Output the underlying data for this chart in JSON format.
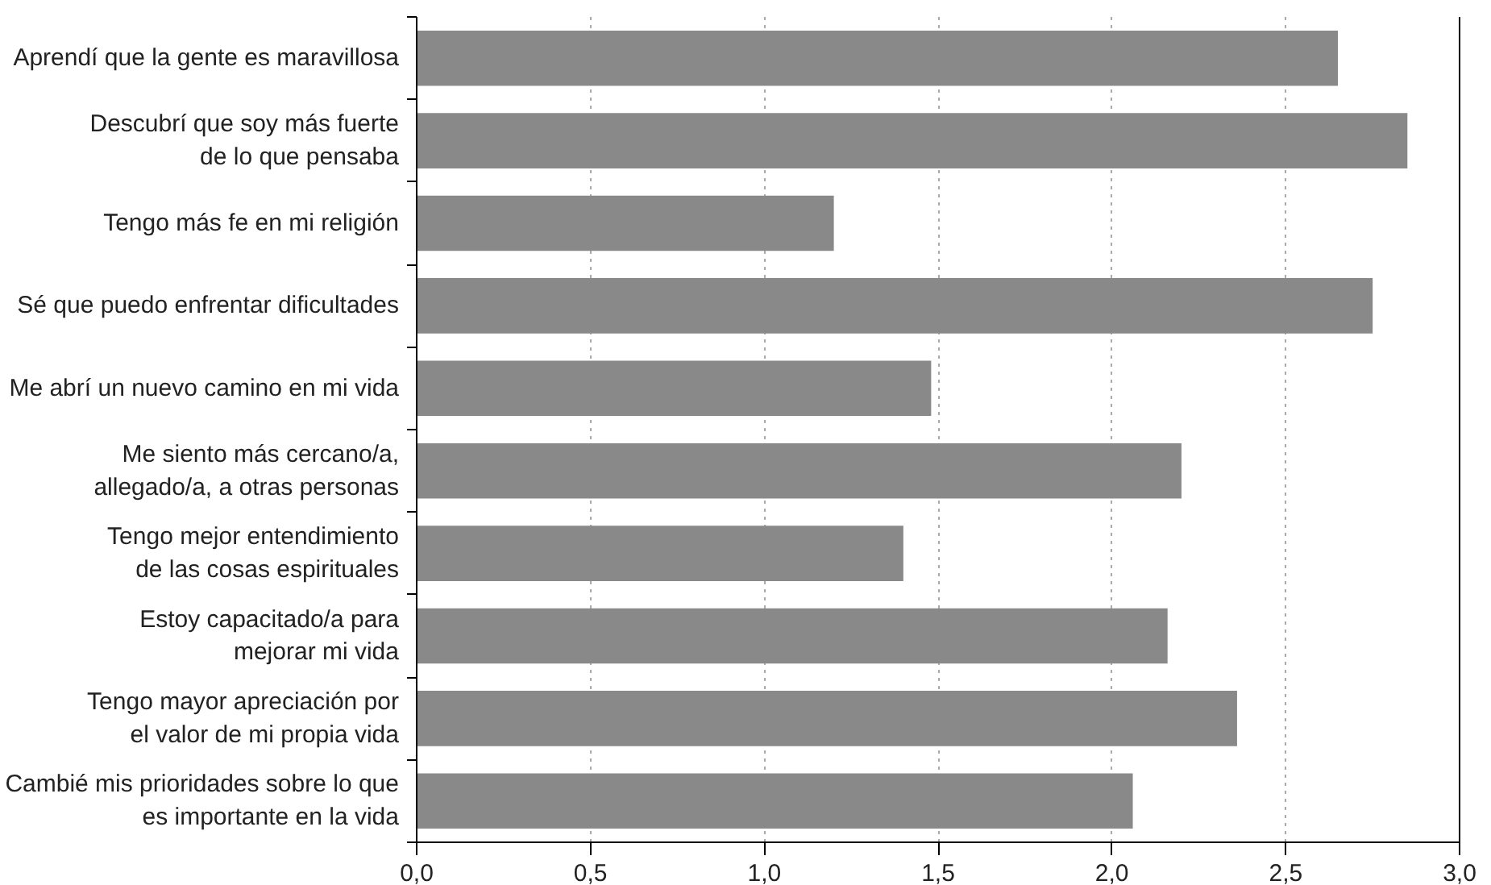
{
  "chart_data": {
    "type": "bar",
    "orientation": "horizontal",
    "categories": [
      "Aprendí que la gente es maravillosa",
      "Descubrí que soy más fuerte\nde lo que pensaba",
      "Tengo más fe en mi religión",
      "Sé que puedo enfrentar dificultades",
      "Me abrí un nuevo camino en mi vida",
      "Me siento más cercano/a,\nallegado/a, a otras personas",
      "Tengo mejor entendimiento\nde las cosas espirituales",
      "Estoy capacitado/a para\nmejorar mi vida",
      "Tengo mayor apreciación por\nel valor de mi propia vida",
      "Cambié mis prioridades sobre lo que\nes importante en la vida"
    ],
    "values": [
      2.65,
      2.85,
      1.2,
      2.75,
      1.48,
      2.2,
      1.4,
      2.16,
      2.36,
      2.06
    ],
    "color": "#898989",
    "xlim": [
      0,
      3
    ],
    "xticks": [
      {
        "value": 0,
        "label": "0,0"
      },
      {
        "value": 0.5,
        "label": "0,5"
      },
      {
        "value": 1,
        "label": "1,0"
      },
      {
        "value": 1.5,
        "label": "1,5"
      },
      {
        "value": 2,
        "label": "2,0"
      },
      {
        "value": 2.5,
        "label": "2,5"
      },
      {
        "value": 3,
        "label": "3,0"
      }
    ],
    "grid": "x"
  }
}
